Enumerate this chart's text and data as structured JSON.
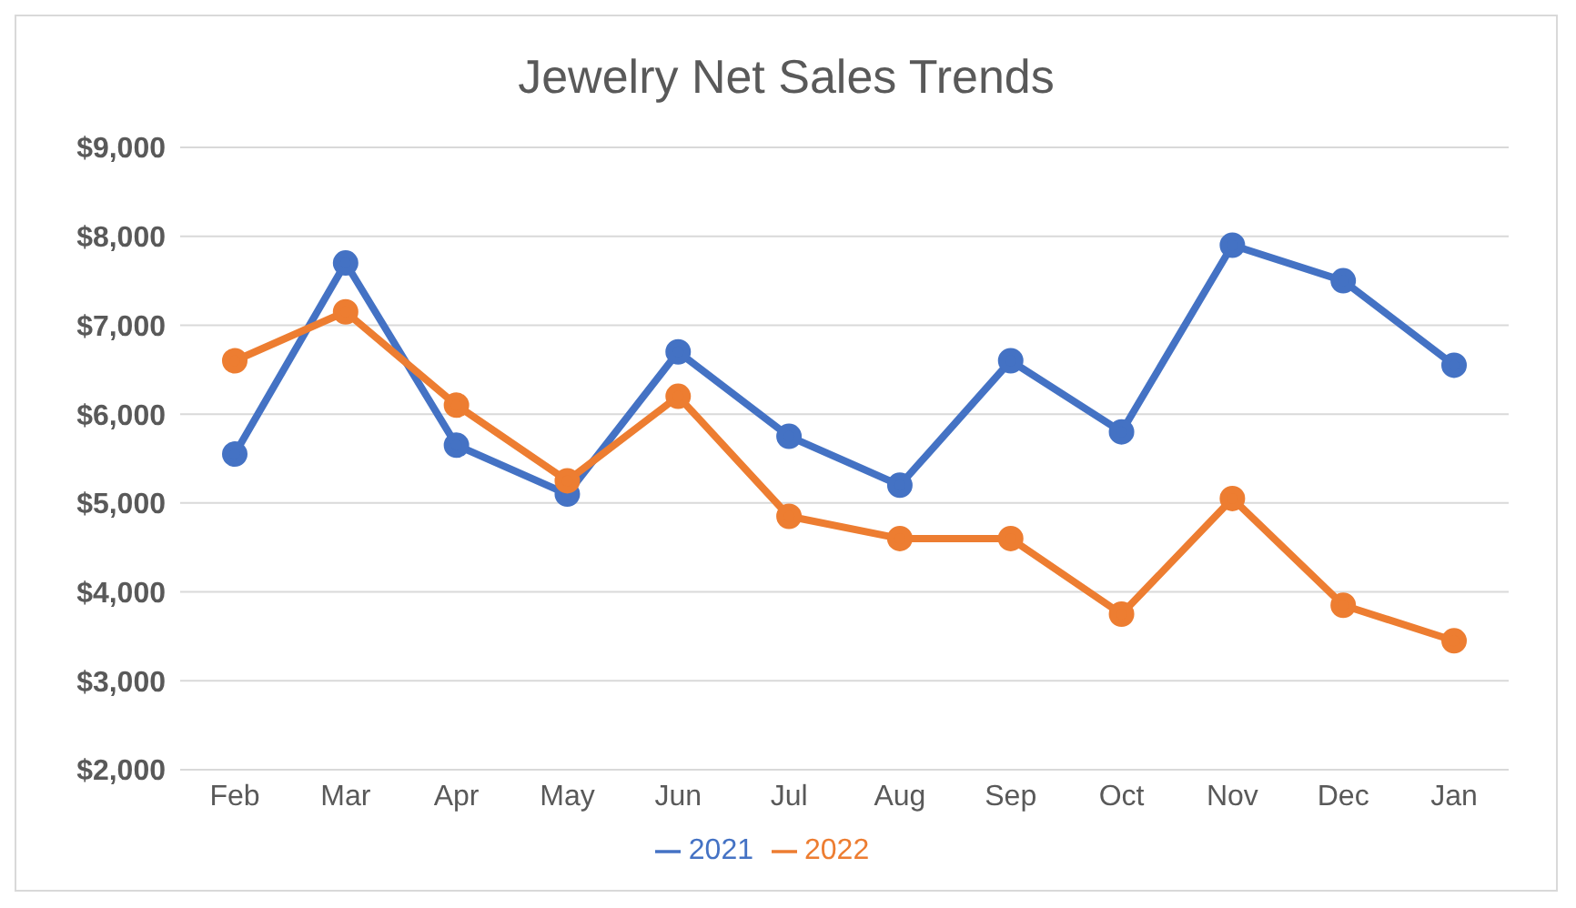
{
  "chart_data": {
    "type": "line",
    "title": "Jewelry Net Sales Trends",
    "categories": [
      "Feb",
      "Mar",
      "Apr",
      "May",
      "Jun",
      "Jul",
      "Aug",
      "Sep",
      "Oct",
      "Nov",
      "Dec",
      "Jan"
    ],
    "series": [
      {
        "name": "2021",
        "color": "#4472c4",
        "values": [
          5550,
          7700,
          5650,
          5100,
          6700,
          5750,
          5200,
          6600,
          5800,
          7900,
          7500,
          6550
        ]
      },
      {
        "name": "2022",
        "color": "#ed7d31",
        "values": [
          6600,
          7150,
          6100,
          5250,
          6200,
          4850,
          4600,
          4600,
          3750,
          5050,
          3850,
          3450
        ]
      }
    ],
    "ylim": [
      2000,
      9000
    ],
    "yticks": [
      {
        "value": 2000,
        "label": "$2,000"
      },
      {
        "value": 3000,
        "label": "$3,000"
      },
      {
        "value": 4000,
        "label": "$4,000"
      },
      {
        "value": 5000,
        "label": "$5,000"
      },
      {
        "value": 6000,
        "label": "$6,000"
      },
      {
        "value": 7000,
        "label": "$7,000"
      },
      {
        "value": 8000,
        "label": "$8,000"
      },
      {
        "value": 9000,
        "label": "$9,000"
      }
    ],
    "grid": "y",
    "legend": "bottom",
    "marker": "circle",
    "line_style": "solid"
  }
}
